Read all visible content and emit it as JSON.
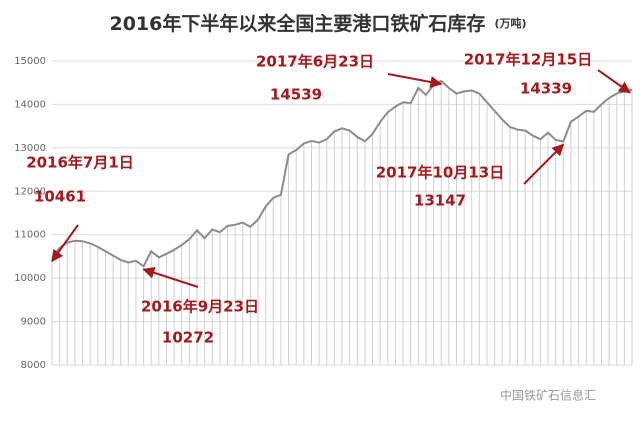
{
  "chart_data": {
    "type": "line",
    "title": "2016年下半年以来全国主要港口铁矿石库存",
    "subtitle": "(万吨)",
    "categories": [
      "2016年7月1日",
      null,
      null,
      null,
      null,
      null,
      null,
      null,
      null,
      null,
      null,
      null,
      "2016年9月23日",
      null,
      null,
      null,
      null,
      null,
      null,
      null,
      null,
      null,
      null,
      null,
      null,
      null,
      null,
      null,
      null,
      null,
      null,
      null,
      null,
      null,
      null,
      null,
      null,
      null,
      null,
      null,
      null,
      null,
      null,
      null,
      null,
      null,
      null,
      null,
      null,
      null,
      null,
      "2017年6月23日",
      null,
      null,
      null,
      null,
      null,
      null,
      null,
      null,
      null,
      null,
      null,
      null,
      null,
      null,
      null,
      "2017年10月13日",
      null,
      null,
      null,
      null,
      null,
      null,
      null,
      null,
      "2017年12月15日"
    ],
    "values": [
      10461,
      10700,
      10820,
      10860,
      10850,
      10800,
      10720,
      10620,
      10520,
      10420,
      10360,
      10400,
      10272,
      10620,
      10480,
      10560,
      10650,
      10760,
      10900,
      11100,
      10920,
      11120,
      11060,
      11200,
      11230,
      11280,
      11180,
      11350,
      11650,
      11850,
      11920,
      12850,
      12950,
      13100,
      13160,
      13120,
      13200,
      13380,
      13450,
      13400,
      13250,
      13150,
      13320,
      13600,
      13820,
      13950,
      14050,
      14030,
      14380,
      14220,
      14450,
      14539,
      14380,
      14250,
      14300,
      14320,
      14250,
      14050,
      13850,
      13650,
      13480,
      13420,
      13400,
      13280,
      13200,
      13350,
      13180,
      13147,
      13600,
      13720,
      13850,
      13830,
      14000,
      14150,
      14250,
      14300,
      14339
    ],
    "color": "#8c8c8c",
    "annotation_color": "#a5191c",
    "ylim": [
      8000,
      15000
    ],
    "yticks": [
      8000,
      9000,
      10000,
      11000,
      12000,
      13000,
      14000,
      15000
    ],
    "grid": true,
    "watermark": "中国铁矿石信息汇"
  }
}
